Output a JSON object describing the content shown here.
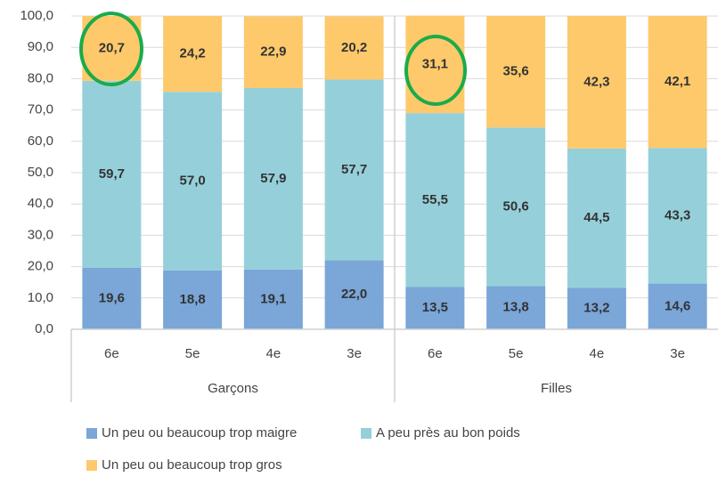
{
  "chart_data": {
    "type": "stacked_bar",
    "groups": [
      {
        "name": "Garçons",
        "categories": [
          "6e",
          "5e",
          "4e",
          "3e"
        ]
      },
      {
        "name": "Filles",
        "categories": [
          "6e",
          "5e",
          "4e",
          "3e"
        ]
      }
    ],
    "series": [
      {
        "name": "Un peu ou beaucoup trop maigre",
        "color": "#7aa6d8",
        "values": [
          19.6,
          18.8,
          19.1,
          22.0,
          13.5,
          13.8,
          13.2,
          14.6
        ],
        "value_labels": [
          "19,6",
          "18,8",
          "19,1",
          "22,0",
          "13,5",
          "13,8",
          "13,2",
          "14,6"
        ]
      },
      {
        "name": "A peu près au bon poids",
        "color": "#95d0da",
        "values": [
          59.7,
          57.0,
          57.9,
          57.7,
          55.5,
          50.6,
          44.5,
          43.3
        ],
        "value_labels": [
          "59,7",
          "57,0",
          "57,9",
          "57,7",
          "55,5",
          "50,6",
          "44,5",
          "43,3"
        ]
      },
      {
        "name": "Un peu ou beaucoup trop gros",
        "color": "#fdc96b",
        "values": [
          20.7,
          24.2,
          22.9,
          20.2,
          31.1,
          35.6,
          42.3,
          42.1
        ],
        "value_labels": [
          "20,7",
          "24,2",
          "22,9",
          "20,2",
          "31,1",
          "35,6",
          "42,3",
          "42,1"
        ]
      }
    ],
    "ylim": [
      0,
      100
    ],
    "yticks": [
      {
        "value": 0,
        "label": "0,0"
      },
      {
        "value": 10,
        "label": "10,0"
      },
      {
        "value": 20,
        "label": "20,0"
      },
      {
        "value": 30,
        "label": "30,0"
      },
      {
        "value": 40,
        "label": "40,0"
      },
      {
        "value": 50,
        "label": "50,0"
      },
      {
        "value": 60,
        "label": "60,0"
      },
      {
        "value": 70,
        "label": "70,0"
      },
      {
        "value": 80,
        "label": "80,0"
      },
      {
        "value": 90,
        "label": "90,0"
      },
      {
        "value": 100,
        "label": "100,0"
      }
    ],
    "grid": true
  }
}
